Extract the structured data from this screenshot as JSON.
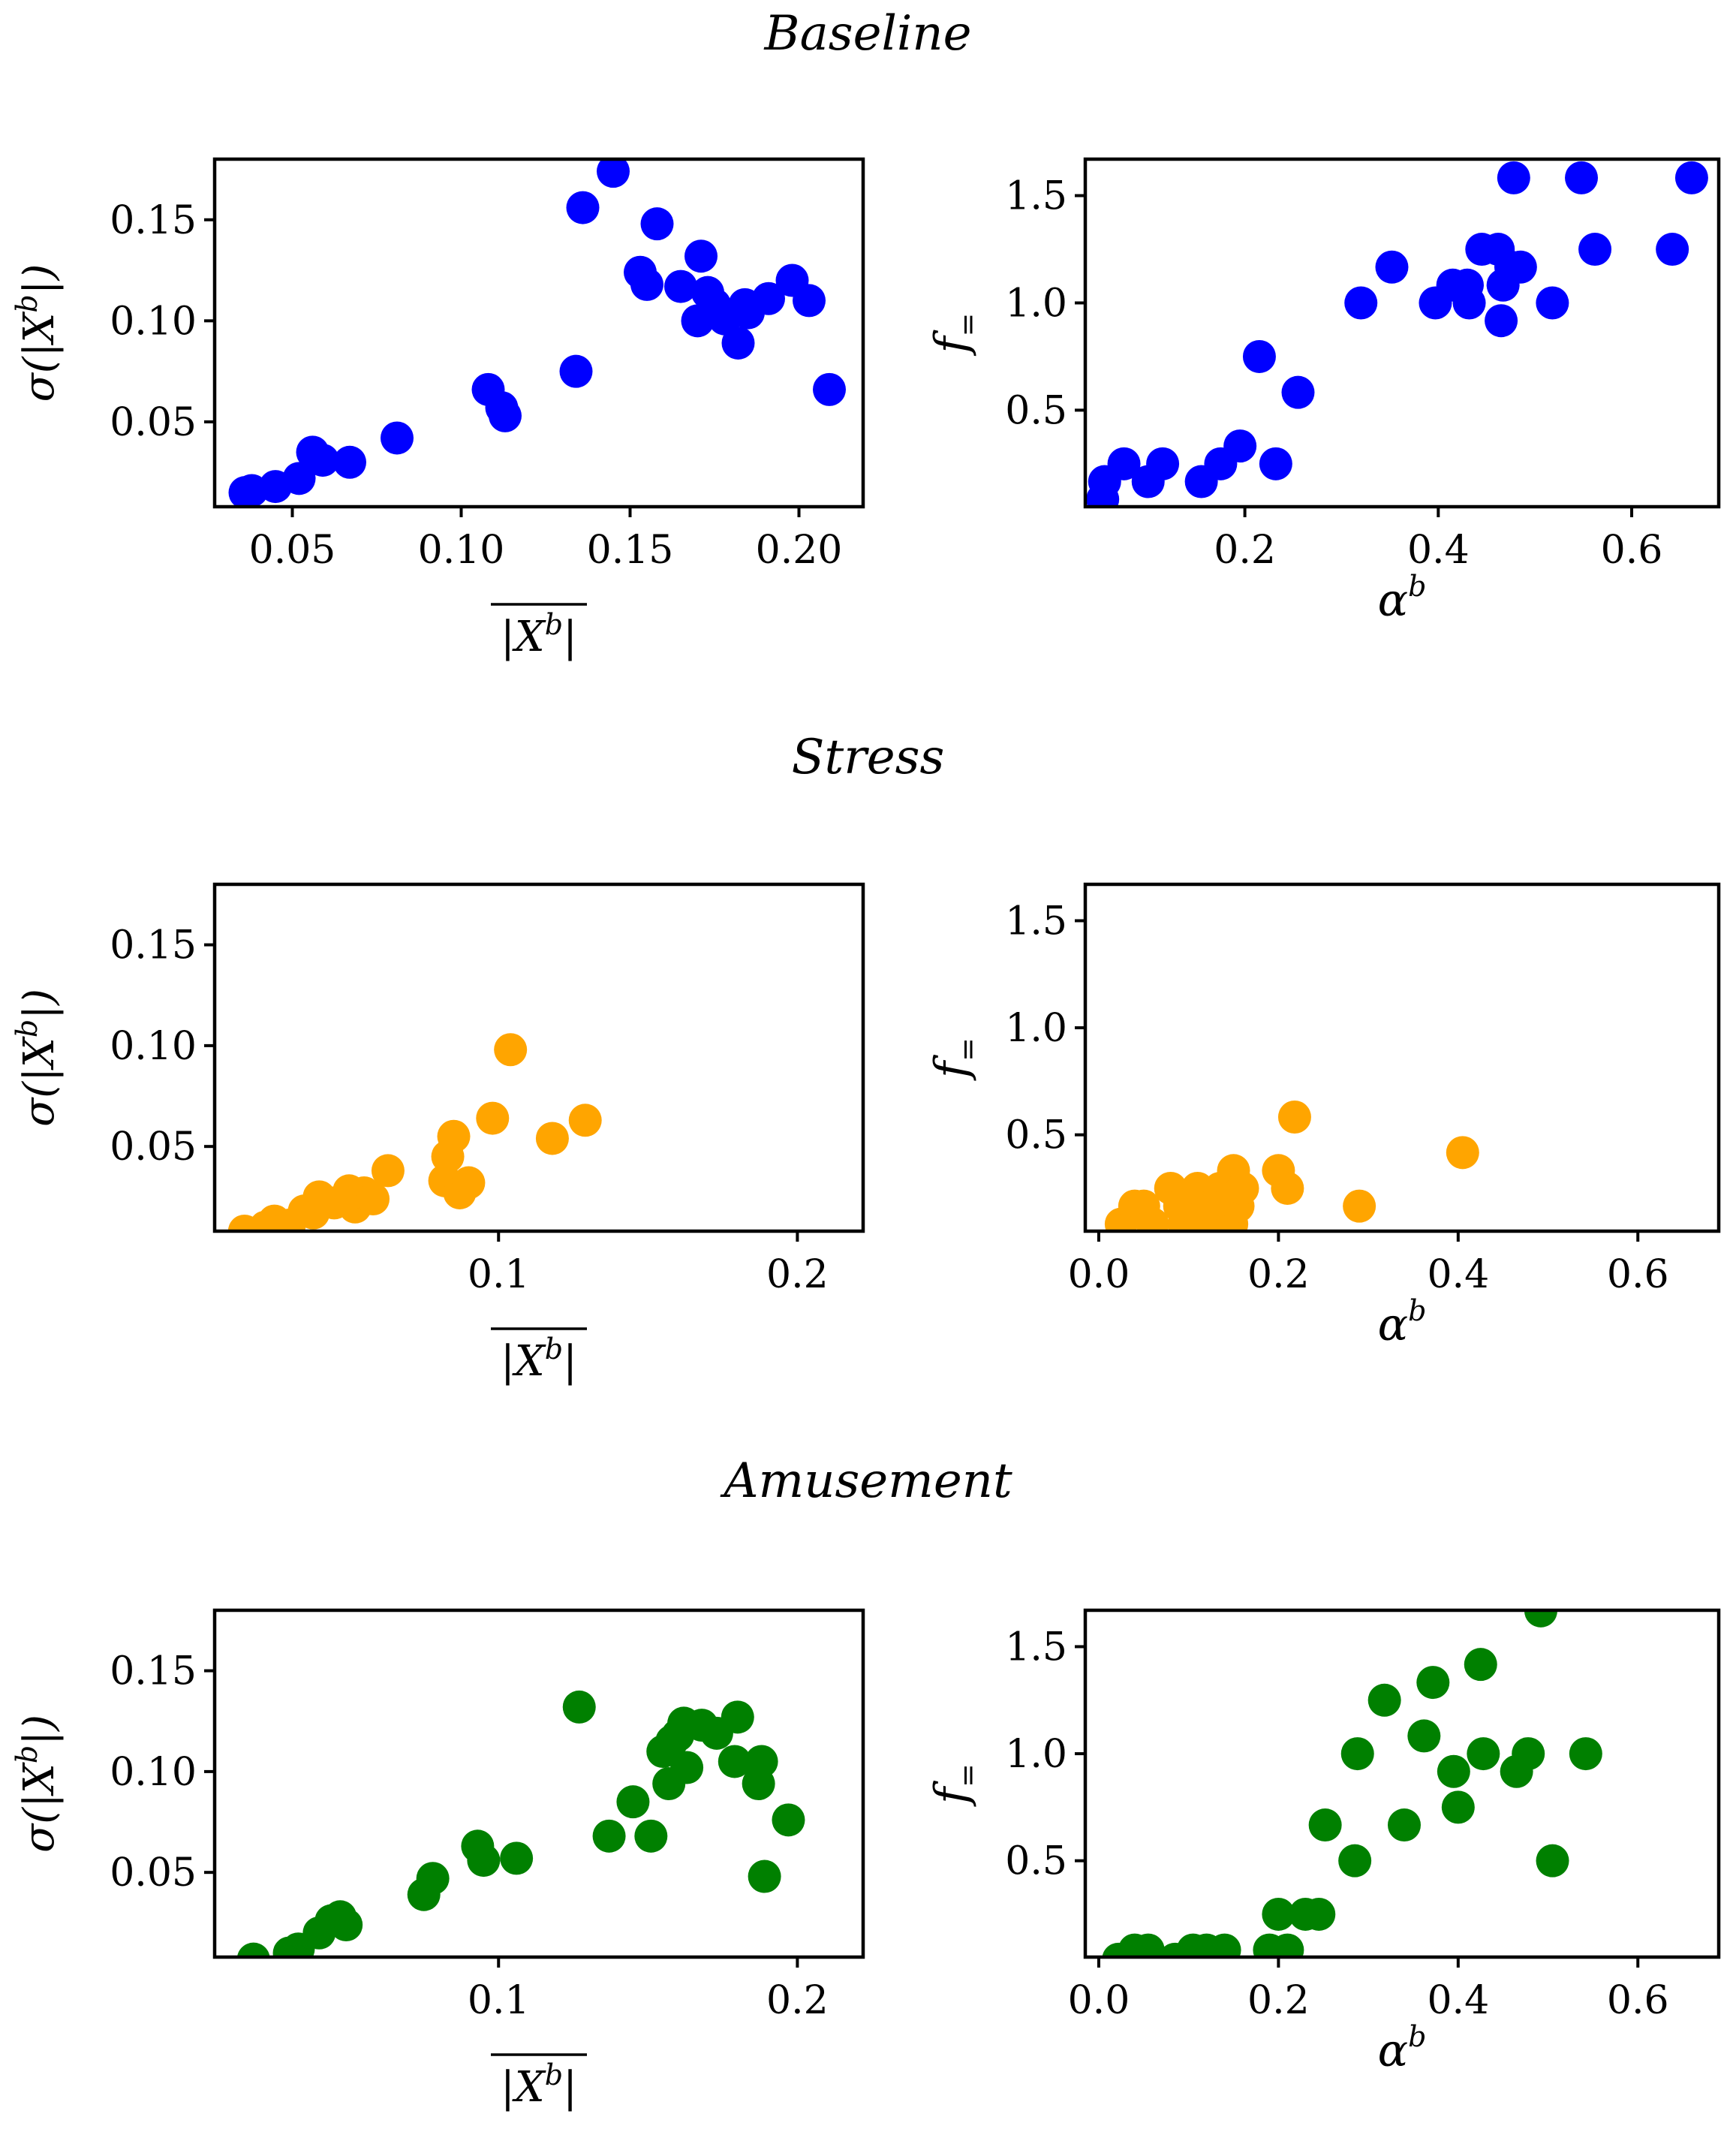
{
  "chart_data": [
    {
      "type": "scatter",
      "group": "Baseline",
      "panel": "mean-vs-std",
      "color": "#0000ff",
      "xlabel": "|X^b| (mean)",
      "ylabel": "σ(|X^b|)",
      "xlim": [
        0.027,
        0.219
      ],
      "ylim": [
        0.008,
        0.18
      ],
      "xticks": [
        "0.05",
        "0.10",
        "0.15",
        "0.20"
      ],
      "xtick_values": [
        0.05,
        0.1,
        0.15,
        0.2
      ],
      "yticks": [
        "0.05",
        "0.10",
        "0.15"
      ],
      "ytick_values": [
        0.05,
        0.1,
        0.15
      ],
      "points": [
        [
          0.036,
          0.015
        ],
        [
          0.038,
          0.016
        ],
        [
          0.045,
          0.018
        ],
        [
          0.052,
          0.022
        ],
        [
          0.056,
          0.035
        ],
        [
          0.059,
          0.031
        ],
        [
          0.067,
          0.03
        ],
        [
          0.081,
          0.042
        ],
        [
          0.108,
          0.066
        ],
        [
          0.112,
          0.057
        ],
        [
          0.113,
          0.053
        ],
        [
          0.134,
          0.075
        ],
        [
          0.136,
          0.156
        ],
        [
          0.145,
          0.174
        ],
        [
          0.153,
          0.124
        ],
        [
          0.155,
          0.118
        ],
        [
          0.158,
          0.148
        ],
        [
          0.165,
          0.117
        ],
        [
          0.17,
          0.1
        ],
        [
          0.171,
          0.132
        ],
        [
          0.173,
          0.114
        ],
        [
          0.175,
          0.108
        ],
        [
          0.178,
          0.101
        ],
        [
          0.182,
          0.089
        ],
        [
          0.184,
          0.108
        ],
        [
          0.185,
          0.104
        ],
        [
          0.191,
          0.111
        ],
        [
          0.198,
          0.12
        ],
        [
          0.203,
          0.11
        ],
        [
          0.209,
          0.066
        ]
      ]
    },
    {
      "type": "scatter",
      "group": "Baseline",
      "panel": "alpha-vs-f",
      "color": "#0000ff",
      "xlabel": "α^b",
      "ylabel": "f_=",
      "xlim": [
        0.035,
        0.69
      ],
      "ylim": [
        0.05,
        1.67
      ],
      "xticks": [
        "0.2",
        "0.4",
        "0.6"
      ],
      "xtick_values": [
        0.2,
        0.4,
        0.6
      ],
      "yticks": [
        "0.5",
        "1.0",
        "1.5"
      ],
      "ytick_values": [
        0.5,
        1.0,
        1.5
      ],
      "points": [
        [
          0.053,
          0.085
        ],
        [
          0.055,
          0.167
        ],
        [
          0.075,
          0.25
        ],
        [
          0.1,
          0.167
        ],
        [
          0.115,
          0.25
        ],
        [
          0.155,
          0.167
        ],
        [
          0.175,
          0.25
        ],
        [
          0.195,
          0.333
        ],
        [
          0.215,
          0.75
        ],
        [
          0.232,
          0.25
        ],
        [
          0.255,
          0.583
        ],
        [
          0.32,
          1.0
        ],
        [
          0.352,
          1.167
        ],
        [
          0.397,
          1.0
        ],
        [
          0.415,
          1.083
        ],
        [
          0.43,
          1.083
        ],
        [
          0.432,
          1.0
        ],
        [
          0.445,
          1.25
        ],
        [
          0.462,
          1.25
        ],
        [
          0.465,
          0.917
        ],
        [
          0.467,
          1.083
        ],
        [
          0.475,
          1.167
        ],
        [
          0.478,
          1.583
        ],
        [
          0.485,
          1.167
        ],
        [
          0.518,
          1.0
        ],
        [
          0.548,
          1.583
        ],
        [
          0.562,
          1.25
        ],
        [
          0.642,
          1.25
        ],
        [
          0.662,
          1.583
        ]
      ]
    },
    {
      "type": "scatter",
      "group": "Stress",
      "panel": "mean-vs-std",
      "color": "#ffa500",
      "xlabel": "|X^b| (mean)",
      "ylabel": "σ(|X^b|)",
      "xlim": [
        0.005,
        0.222
      ],
      "ylim": [
        0.008,
        0.18
      ],
      "xticks": [
        "0.1",
        "0.2"
      ],
      "xtick_values": [
        0.1,
        0.2
      ],
      "yticks": [
        "0.05",
        "0.10",
        "0.15"
      ],
      "ytick_values": [
        0.05,
        0.1,
        0.15
      ],
      "points": [
        [
          0.015,
          0.008
        ],
        [
          0.022,
          0.01
        ],
        [
          0.025,
          0.013
        ],
        [
          0.03,
          0.011
        ],
        [
          0.035,
          0.018
        ],
        [
          0.038,
          0.017
        ],
        [
          0.04,
          0.025
        ],
        [
          0.045,
          0.022
        ],
        [
          0.05,
          0.028
        ],
        [
          0.052,
          0.02
        ],
        [
          0.055,
          0.027
        ],
        [
          0.058,
          0.024
        ],
        [
          0.063,
          0.038
        ],
        [
          0.082,
          0.033
        ],
        [
          0.083,
          0.045
        ],
        [
          0.085,
          0.055
        ],
        [
          0.087,
          0.027
        ],
        [
          0.09,
          0.032
        ],
        [
          0.098,
          0.064
        ],
        [
          0.104,
          0.098
        ],
        [
          0.118,
          0.054
        ],
        [
          0.129,
          0.063
        ]
      ]
    },
    {
      "type": "scatter",
      "group": "Stress",
      "panel": "alpha-vs-f",
      "color": "#ffa500",
      "xlabel": "α^b",
      "ylabel": "f_=",
      "xlim": [
        -0.015,
        0.69
      ],
      "ylim": [
        0.05,
        1.67
      ],
      "xticks": [
        "0.0",
        "0.2",
        "0.4",
        "0.6"
      ],
      "xtick_values": [
        0.0,
        0.2,
        0.4,
        0.6
      ],
      "yticks": [
        "0.5",
        "1.0",
        "1.5"
      ],
      "ytick_values": [
        0.5,
        1.0,
        1.5
      ],
      "points": [
        [
          0.025,
          0.083
        ],
        [
          0.04,
          0.167
        ],
        [
          0.05,
          0.167
        ],
        [
          0.06,
          0.083
        ],
        [
          0.08,
          0.25
        ],
        [
          0.09,
          0.167
        ],
        [
          0.095,
          0.083
        ],
        [
          0.1,
          0.167
        ],
        [
          0.11,
          0.25
        ],
        [
          0.12,
          0.083
        ],
        [
          0.125,
          0.167
        ],
        [
          0.135,
          0.25
        ],
        [
          0.14,
          0.167
        ],
        [
          0.148,
          0.083
        ],
        [
          0.15,
          0.333
        ],
        [
          0.155,
          0.167
        ],
        [
          0.16,
          0.25
        ],
        [
          0.2,
          0.333
        ],
        [
          0.21,
          0.25
        ],
        [
          0.218,
          0.583
        ],
        [
          0.29,
          0.167
        ],
        [
          0.405,
          0.417
        ]
      ]
    },
    {
      "type": "scatter",
      "group": "Amusement",
      "panel": "mean-vs-std",
      "color": "#008000",
      "xlabel": "|X^b| (mean)",
      "ylabel": "σ(|X^b|)",
      "xlim": [
        0.005,
        0.222
      ],
      "ylim": [
        0.008,
        0.18
      ],
      "xticks": [
        "0.1",
        "0.2"
      ],
      "xtick_values": [
        0.1,
        0.2
      ],
      "yticks": [
        "0.05",
        "0.10",
        "0.15"
      ],
      "ytick_values": [
        0.05,
        0.1,
        0.15
      ],
      "points": [
        [
          0.018,
          0.007
        ],
        [
          0.03,
          0.01
        ],
        [
          0.033,
          0.012
        ],
        [
          0.04,
          0.02
        ],
        [
          0.044,
          0.026
        ],
        [
          0.047,
          0.028
        ],
        [
          0.049,
          0.024
        ],
        [
          0.075,
          0.039
        ],
        [
          0.078,
          0.047
        ],
        [
          0.093,
          0.063
        ],
        [
          0.095,
          0.056
        ],
        [
          0.106,
          0.057
        ],
        [
          0.127,
          0.132
        ],
        [
          0.137,
          0.068
        ],
        [
          0.145,
          0.085
        ],
        [
          0.151,
          0.068
        ],
        [
          0.155,
          0.11
        ],
        [
          0.157,
          0.094
        ],
        [
          0.158,
          0.115
        ],
        [
          0.16,
          0.118
        ],
        [
          0.162,
          0.124
        ],
        [
          0.163,
          0.102
        ],
        [
          0.168,
          0.123
        ],
        [
          0.173,
          0.119
        ],
        [
          0.179,
          0.105
        ],
        [
          0.18,
          0.127
        ],
        [
          0.187,
          0.094
        ],
        [
          0.188,
          0.105
        ],
        [
          0.189,
          0.048
        ],
        [
          0.197,
          0.076
        ]
      ]
    },
    {
      "type": "scatter",
      "group": "Amusement",
      "panel": "alpha-vs-f",
      "color": "#008000",
      "xlabel": "α^b",
      "ylabel": "f_=",
      "xlim": [
        -0.015,
        0.69
      ],
      "ylim": [
        0.05,
        1.67
      ],
      "xticks": [
        "0.0",
        "0.2",
        "0.4",
        "0.6"
      ],
      "xtick_values": [
        0.0,
        0.2,
        0.4,
        0.6
      ],
      "yticks": [
        "0.5",
        "1.0",
        "1.5"
      ],
      "ytick_values": [
        0.5,
        1.0,
        1.5
      ],
      "points": [
        [
          0.022,
          0.04
        ],
        [
          0.04,
          0.083
        ],
        [
          0.055,
          0.083
        ],
        [
          0.085,
          0.04
        ],
        [
          0.105,
          0.083
        ],
        [
          0.12,
          0.083
        ],
        [
          0.14,
          0.083
        ],
        [
          0.19,
          0.083
        ],
        [
          0.2,
          0.25
        ],
        [
          0.21,
          0.083
        ],
        [
          0.23,
          0.25
        ],
        [
          0.245,
          0.25
        ],
        [
          0.252,
          0.667
        ],
        [
          0.285,
          0.5
        ],
        [
          0.288,
          1.0
        ],
        [
          0.318,
          1.25
        ],
        [
          0.34,
          0.667
        ],
        [
          0.362,
          1.083
        ],
        [
          0.372,
          1.333
        ],
        [
          0.395,
          0.917
        ],
        [
          0.4,
          0.75
        ],
        [
          0.425,
          1.417
        ],
        [
          0.428,
          1.0
        ],
        [
          0.465,
          0.917
        ],
        [
          0.478,
          1.0
        ],
        [
          0.492,
          1.667
        ],
        [
          0.505,
          0.5
        ],
        [
          0.542,
          1.0
        ]
      ]
    }
  ],
  "rows": [
    {
      "title": "Baseline"
    },
    {
      "title": "Stress"
    },
    {
      "title": "Amusement"
    }
  ]
}
